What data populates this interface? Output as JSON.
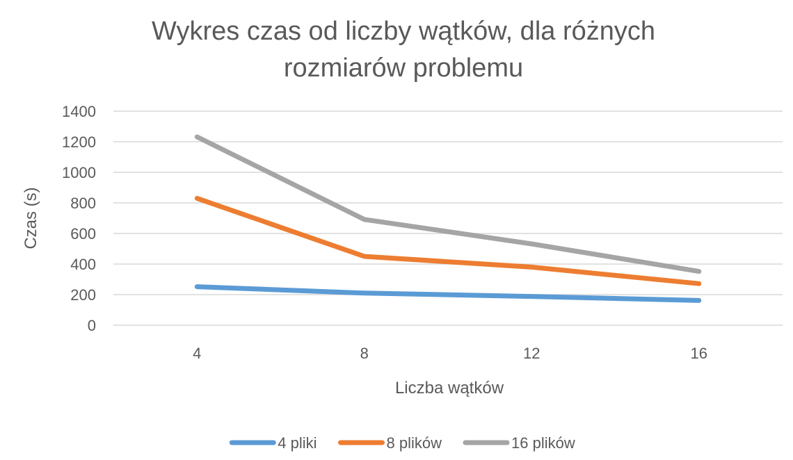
{
  "chart_data": {
    "type": "line",
    "title": "Wykres czas od liczby wątków, dla różnych rozmiarów problemu",
    "title_lines": [
      "Wykres czas od liczby wątków, dla różnych",
      "rozmiarów problemu"
    ],
    "xlabel": "Liczba wątków",
    "ylabel": "Czas (s)",
    "x": [
      "4",
      "8",
      "12",
      "16"
    ],
    "ylim": [
      0,
      1400
    ],
    "yticks": [
      "0",
      "200",
      "400",
      "600",
      "800",
      "1000",
      "1200",
      "1400"
    ],
    "grid": true,
    "legend_position": "bottom",
    "series": [
      {
        "name": "4 pliki",
        "color": "#5B9BD5",
        "values": [
          252,
          210,
          188,
          162
        ]
      },
      {
        "name": "8 plików",
        "color": "#ED7D31",
        "values": [
          830,
          450,
          380,
          272
        ]
      },
      {
        "name": "16 plików",
        "color": "#A5A5A5",
        "values": [
          1232,
          692,
          532,
          352
        ]
      }
    ]
  }
}
